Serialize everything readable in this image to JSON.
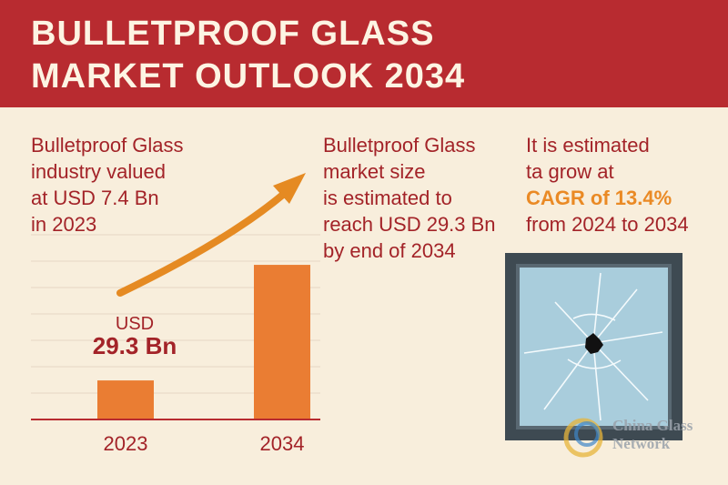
{
  "header": {
    "title_line1": "BULLETPROOF GLASS",
    "title_line2": "MARKET OUTLOOK 2034"
  },
  "left_text": [
    "Bulletproof Glass",
    "industry valued",
    "at USD 7.4 Bn",
    "in 2023"
  ],
  "middle_text": [
    "Bulletproof Glass",
    "market size",
    "is estimated to",
    "reach USD 29.3 Bn",
    "by end of 2034"
  ],
  "right_text": {
    "line1": "It is estimated",
    "line2": "ta grow at",
    "highlight": "CAGR of 13.4%",
    "line4": "from 2024 to 2034"
  },
  "icons": [
    "growth-arrow-icon",
    "cracked-glass-window-icon",
    "china-glass-network-logo"
  ],
  "watermark": {
    "line1": "China Glass",
    "line2": "Network"
  },
  "colors": {
    "banner": "#b82b30",
    "background": "#f8eedc",
    "bar": "#ea7d33",
    "arrow": "#e58a22",
    "text": "#a32328",
    "highlight": "#ea8a25"
  },
  "chart_data": {
    "type": "bar",
    "categories": [
      "2023",
      "2034"
    ],
    "values": [
      7.4,
      29.3
    ],
    "value_label": {
      "line1": "USD",
      "line2": "29.3 Bn"
    },
    "title": "",
    "xlabel": "",
    "ylabel": "",
    "ylim": [
      0,
      40
    ],
    "grid": true
  }
}
